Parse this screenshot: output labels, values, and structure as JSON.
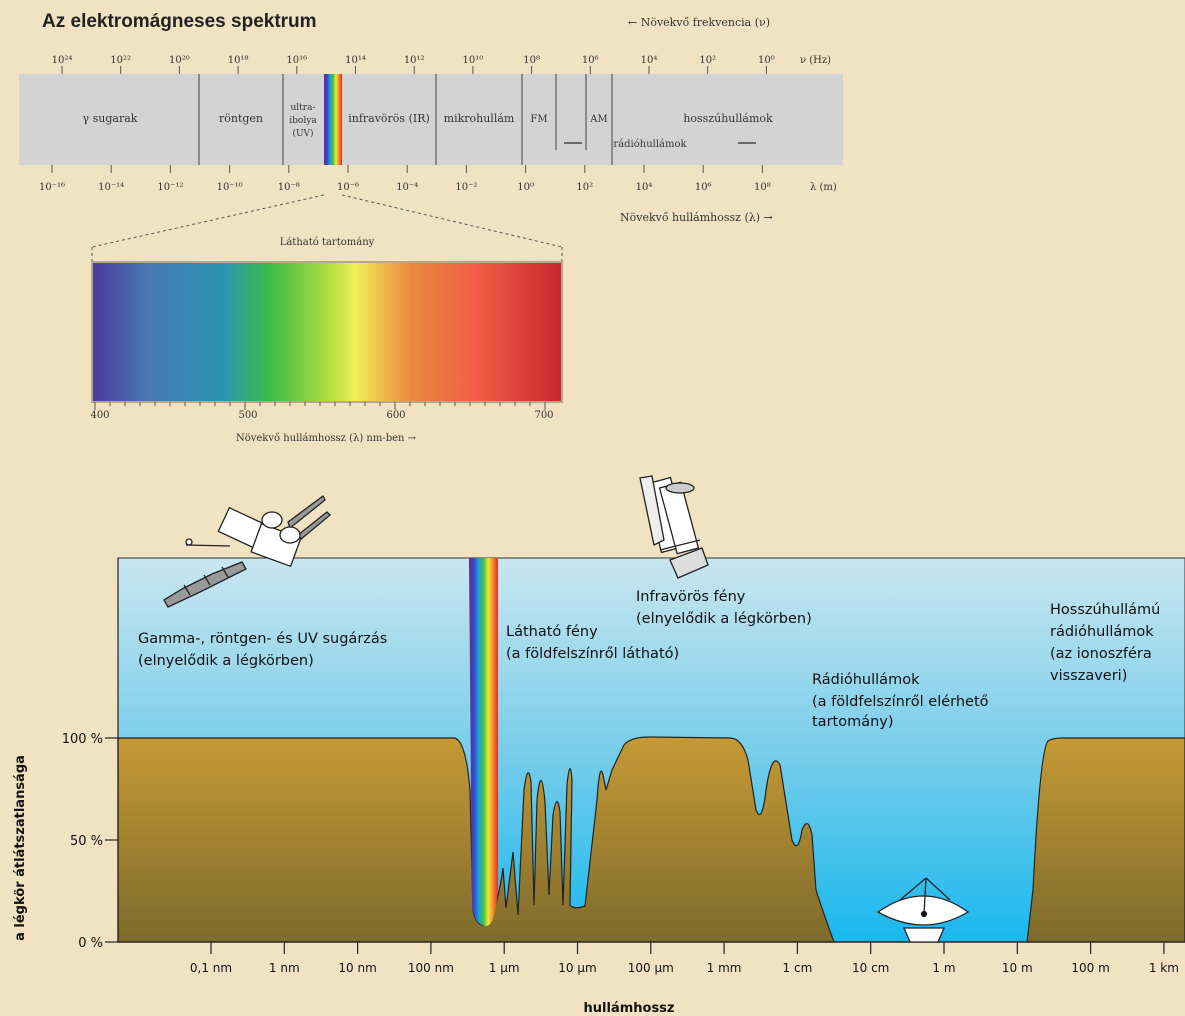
{
  "header": {
    "title": "Az elektromágneses spektrum",
    "freq_arrow_label": "← Növekvő frekvencia (ν)",
    "wave_arrow_label": "Növekvő hullámhossz (λ) →",
    "freq_unit": "ν (Hz)",
    "wave_unit": "λ (m)"
  },
  "freq_ticks": [
    "10²⁴",
    "10²²",
    "10²⁰",
    "10¹⁸",
    "10¹⁶",
    "10¹⁴",
    "10¹²",
    "10¹⁰",
    "10⁸",
    "10⁶",
    "10⁴",
    "10²",
    "10⁰"
  ],
  "wave_ticks": [
    "10⁻¹⁶",
    "10⁻¹⁴",
    "10⁻¹²",
    "10⁻¹⁰",
    "10⁻⁸",
    "10⁻⁶",
    "10⁻⁴",
    "10⁻²",
    "10⁰",
    "10²",
    "10⁴",
    "10⁶",
    "10⁸"
  ],
  "bands": {
    "gamma": "γ sugarak",
    "xray": "röntgen",
    "uv": [
      "ultra-",
      "ibolya",
      "(UV)"
    ],
    "ir": "infravörös (IR)",
    "micro": "mikrohullám",
    "fm": "FM",
    "am": "AM",
    "radio": "rádióhullámok",
    "long": "hosszúhullámok"
  },
  "visible": {
    "title": "Látható tartomány",
    "ticks": [
      "400",
      "500",
      "600",
      "700"
    ],
    "axis_label": "Növekvő hullámhossz (λ) nm-ben →"
  },
  "opacity_chart": {
    "ylabel": "a légkör átlátszatlansága",
    "xlabel": "hullámhossz",
    "y_ticks": [
      "100 %",
      "50 %",
      "0 %"
    ],
    "x_ticks": [
      "0,1 nm",
      "1 nm",
      "10 nm",
      "100 nm",
      "1 µm",
      "10 µm",
      "100 µm",
      "1 mm",
      "1 cm",
      "10 cm",
      "1 m",
      "10 m",
      "100 m",
      "1 km"
    ],
    "annotations": {
      "gamma": [
        "Gamma-, röntgen- és UV sugárzás",
        "(elnyelődik a légkörben)"
      ],
      "visible": [
        "Látható fény",
        "(a földfelszínről látható)"
      ],
      "infrared": [
        "Infravörös fény",
        "(elnyelődik a légkörben)"
      ],
      "radio": [
        "Rádióhullámok",
        "(a földfelszínről elérhető",
        "tartomány)"
      ],
      "long_radio": [
        "Hosszúhullámú",
        "rádióhullámok",
        "(az ionoszféra",
        "visszaveri)"
      ]
    }
  },
  "colors": {
    "background": "#f1e2c1",
    "sky_top": "#c9e6f0",
    "sky_bottom": "#19b8ee",
    "ground_top": "#c69a35",
    "ground_bottom": "#7d6b2c",
    "band_bar": "#d3d3d3"
  }
}
